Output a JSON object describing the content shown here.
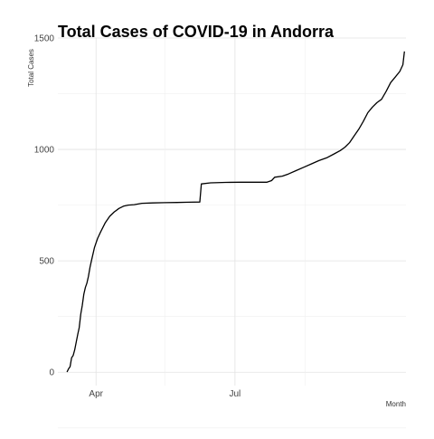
{
  "chart_data": {
    "type": "line",
    "title": "Total Cases of COVID-19 in Andorra",
    "xlabel": "Month",
    "ylabel": "Total Cases",
    "ylim": [
      -60,
      1500
    ],
    "yticks": [
      0,
      500,
      1000,
      1500
    ],
    "x_range": [
      "2020-03-07",
      "2020-10-21"
    ],
    "x_ticks": [
      {
        "date": "2020-04-01",
        "label": "Apr"
      },
      {
        "date": "2020-07-01",
        "label": "Jul"
      }
    ],
    "x_minor_gridlines": [
      "2020-03-01",
      "2020-05-16",
      "2020-08-16"
    ],
    "grid": true,
    "legend": "none",
    "line_color": "#000000",
    "series": [
      {
        "x": [
          "2020-03-13",
          "2020-03-14",
          "2020-03-15",
          "2020-03-16",
          "2020-03-17",
          "2020-03-18",
          "2020-03-19",
          "2020-03-20",
          "2020-03-21",
          "2020-03-22",
          "2020-03-23",
          "2020-03-24",
          "2020-03-25",
          "2020-03-26",
          "2020-03-27",
          "2020-03-28",
          "2020-03-29",
          "2020-03-30",
          "2020-03-31",
          "2020-04-02",
          "2020-04-04",
          "2020-04-07",
          "2020-04-10",
          "2020-04-13",
          "2020-04-16",
          "2020-04-19",
          "2020-04-22",
          "2020-04-26",
          "2020-05-01",
          "2020-05-08",
          "2020-05-16",
          "2020-05-24",
          "2020-06-01",
          "2020-06-08",
          "2020-06-09",
          "2020-06-15",
          "2020-06-25",
          "2020-07-05",
          "2020-07-15",
          "2020-07-22",
          "2020-07-25",
          "2020-07-27",
          "2020-08-01",
          "2020-08-05",
          "2020-08-10",
          "2020-08-15",
          "2020-08-20",
          "2020-08-25",
          "2020-08-30",
          "2020-09-04",
          "2020-09-08",
          "2020-09-11",
          "2020-09-14",
          "2020-09-17",
          "2020-09-20",
          "2020-09-23",
          "2020-09-26",
          "2020-09-29",
          "2020-10-02",
          "2020-10-05",
          "2020-10-08",
          "2020-10-11",
          "2020-10-14",
          "2020-10-17",
          "2020-10-19",
          "2020-10-20"
        ],
        "y": [
          1,
          15,
          25,
          65,
          75,
          100,
          135,
          170,
          200,
          260,
          300,
          350,
          380,
          400,
          430,
          470,
          500,
          530,
          560,
          600,
          630,
          670,
          700,
          720,
          735,
          745,
          750,
          752,
          758,
          760,
          761,
          762,
          763,
          764,
          845,
          850,
          852,
          853,
          853,
          853,
          860,
          875,
          880,
          890,
          905,
          920,
          935,
          950,
          962,
          980,
          995,
          1010,
          1030,
          1060,
          1090,
          1125,
          1165,
          1190,
          1210,
          1225,
          1260,
          1300,
          1325,
          1350,
          1380,
          1440
        ]
      }
    ]
  }
}
